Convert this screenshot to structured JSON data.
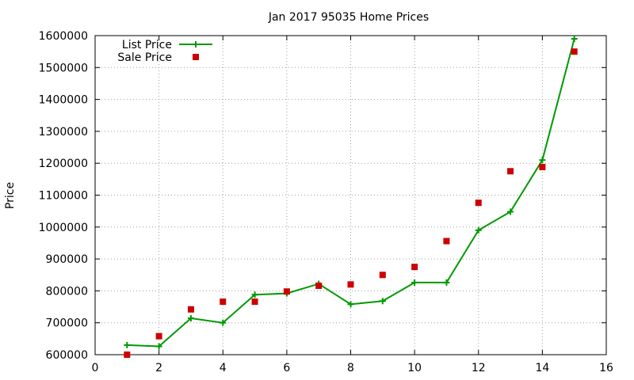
{
  "chart_data": {
    "type": "line",
    "title": "Jan 2017 95035 Home Prices",
    "xlabel": "",
    "ylabel": "Price",
    "xlim": [
      0,
      16
    ],
    "ylim": [
      600000,
      1600000
    ],
    "x_ticks": [
      0,
      2,
      4,
      6,
      8,
      10,
      12,
      14,
      16
    ],
    "y_ticks": [
      600000,
      700000,
      800000,
      900000,
      1000000,
      1100000,
      1200000,
      1300000,
      1400000,
      1500000,
      1600000
    ],
    "grid": true,
    "legend_position": "top-left",
    "series": [
      {
        "name": "List Price",
        "style": "line-with-plus-markers",
        "color": "#009900",
        "points": [
          [
            1,
            630000
          ],
          [
            2,
            626000
          ],
          [
            3,
            714000
          ],
          [
            4,
            700000
          ],
          [
            5,
            788000
          ],
          [
            6,
            792000
          ],
          [
            7,
            822000
          ],
          [
            8,
            758000
          ],
          [
            9,
            768000
          ],
          [
            10,
            826000
          ],
          [
            11,
            826000
          ],
          [
            12,
            990000
          ],
          [
            13,
            1048000
          ],
          [
            14,
            1210000
          ],
          [
            15,
            1590000
          ]
        ]
      },
      {
        "name": "Sale Price",
        "style": "square-markers",
        "color": "#cc0000",
        "points": [
          [
            1,
            600000
          ],
          [
            2,
            658000
          ],
          [
            3,
            742000
          ],
          [
            4,
            766000
          ],
          [
            5,
            766000
          ],
          [
            6,
            798000
          ],
          [
            7,
            816000
          ],
          [
            8,
            820000
          ],
          [
            9,
            850000
          ],
          [
            10,
            875000
          ],
          [
            11,
            956000
          ],
          [
            12,
            1076000
          ],
          [
            13,
            1175000
          ],
          [
            14,
            1188000
          ],
          [
            15,
            1550000
          ]
        ]
      }
    ]
  }
}
